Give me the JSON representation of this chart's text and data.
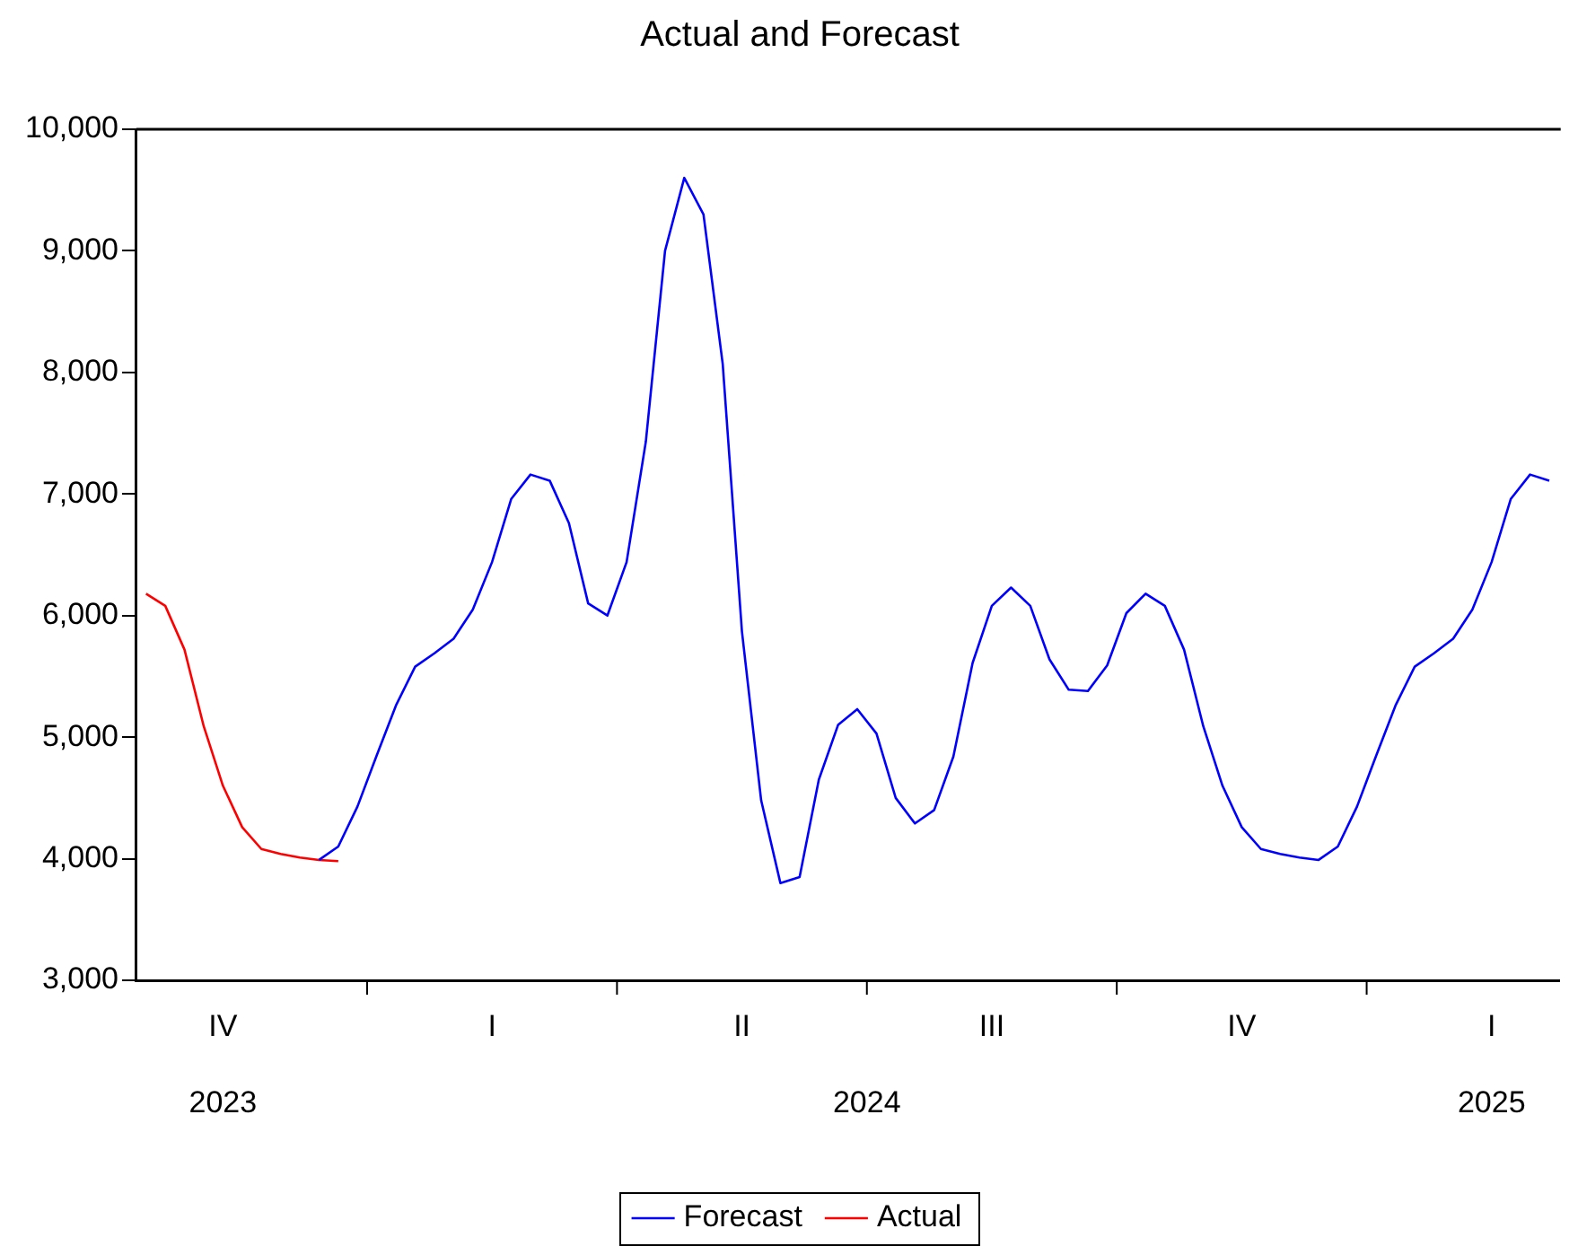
{
  "chart_data": {
    "type": "line",
    "title": "Actual and Forecast",
    "categories": [
      null,
      null,
      null,
      null,
      "IV",
      null,
      null,
      null,
      null,
      null,
      null,
      null,
      null,
      null,
      null,
      null,
      null,
      null,
      "I",
      null,
      null,
      null,
      null,
      null,
      null,
      null,
      null,
      null,
      null,
      null,
      null,
      "II",
      null,
      null,
      null,
      null,
      null,
      null,
      null,
      null,
      null,
      null,
      null,
      null,
      "III",
      null,
      null,
      null,
      null,
      null,
      null,
      null,
      null,
      null,
      null,
      null,
      null,
      "IV",
      null,
      null,
      null,
      null,
      null,
      null,
      null,
      null,
      null,
      null,
      null,
      null,
      "I",
      null,
      null,
      null
    ],
    "series": [
      {
        "name": "Forecast",
        "color": "#0000ff",
        "values": [
          null,
          null,
          null,
          null,
          null,
          null,
          null,
          null,
          null,
          3990,
          4100,
          4430,
          4850,
          5260,
          5580,
          5690,
          5810,
          6050,
          6440,
          6960,
          7160,
          7110,
          6760,
          6100,
          6000,
          6440,
          7430,
          9000,
          9600,
          9300,
          8070,
          5870,
          4480,
          3800,
          3850,
          4650,
          5100,
          5230,
          5030,
          4500,
          4290,
          4400,
          4840,
          5610,
          6080,
          6230,
          6080,
          5640,
          5390,
          5380,
          5590,
          6020,
          6180,
          6080,
          5720,
          5090,
          4600,
          4260,
          4080,
          4040,
          4010,
          3990,
          4100,
          4430,
          4850,
          5260,
          5580,
          5690,
          5810,
          6050,
          6440,
          6960,
          7160,
          7110
        ]
      },
      {
        "name": "Actual",
        "color": "#ff0000",
        "values": [
          6180,
          6080,
          5720,
          5090,
          4600,
          4260,
          4080,
          4040,
          4010,
          3990,
          3980,
          null,
          null,
          null,
          null,
          null,
          null,
          null,
          null,
          null,
          null,
          null,
          null,
          null,
          null,
          null,
          null,
          null,
          null,
          null,
          null,
          null,
          null,
          null,
          null,
          null,
          null,
          null,
          null,
          null,
          null,
          null,
          null,
          null,
          null,
          null,
          null,
          null,
          null,
          null,
          null,
          null,
          null,
          null,
          null,
          null,
          null,
          null,
          null,
          null,
          null,
          null,
          null,
          null,
          null,
          null,
          null,
          null,
          null,
          null,
          null,
          null,
          null,
          null
        ]
      }
    ],
    "ylim": [
      3000,
      10000
    ],
    "yticks": [
      {
        "value": 3000,
        "label": "3,000"
      },
      {
        "value": 4000,
        "label": "4,000"
      },
      {
        "value": 5000,
        "label": "5,000"
      },
      {
        "value": 6000,
        "label": "6,000"
      },
      {
        "value": 7000,
        "label": "7,000"
      },
      {
        "value": 8000,
        "label": "8,000"
      },
      {
        "value": 9000,
        "label": "9,000"
      },
      {
        "value": 10000,
        "label": "10,000"
      }
    ],
    "annotations": [
      "2023",
      "2024",
      "2025"
    ],
    "legend": "bottom",
    "grid": false,
    "marker": "none",
    "line_style": "solid"
  }
}
